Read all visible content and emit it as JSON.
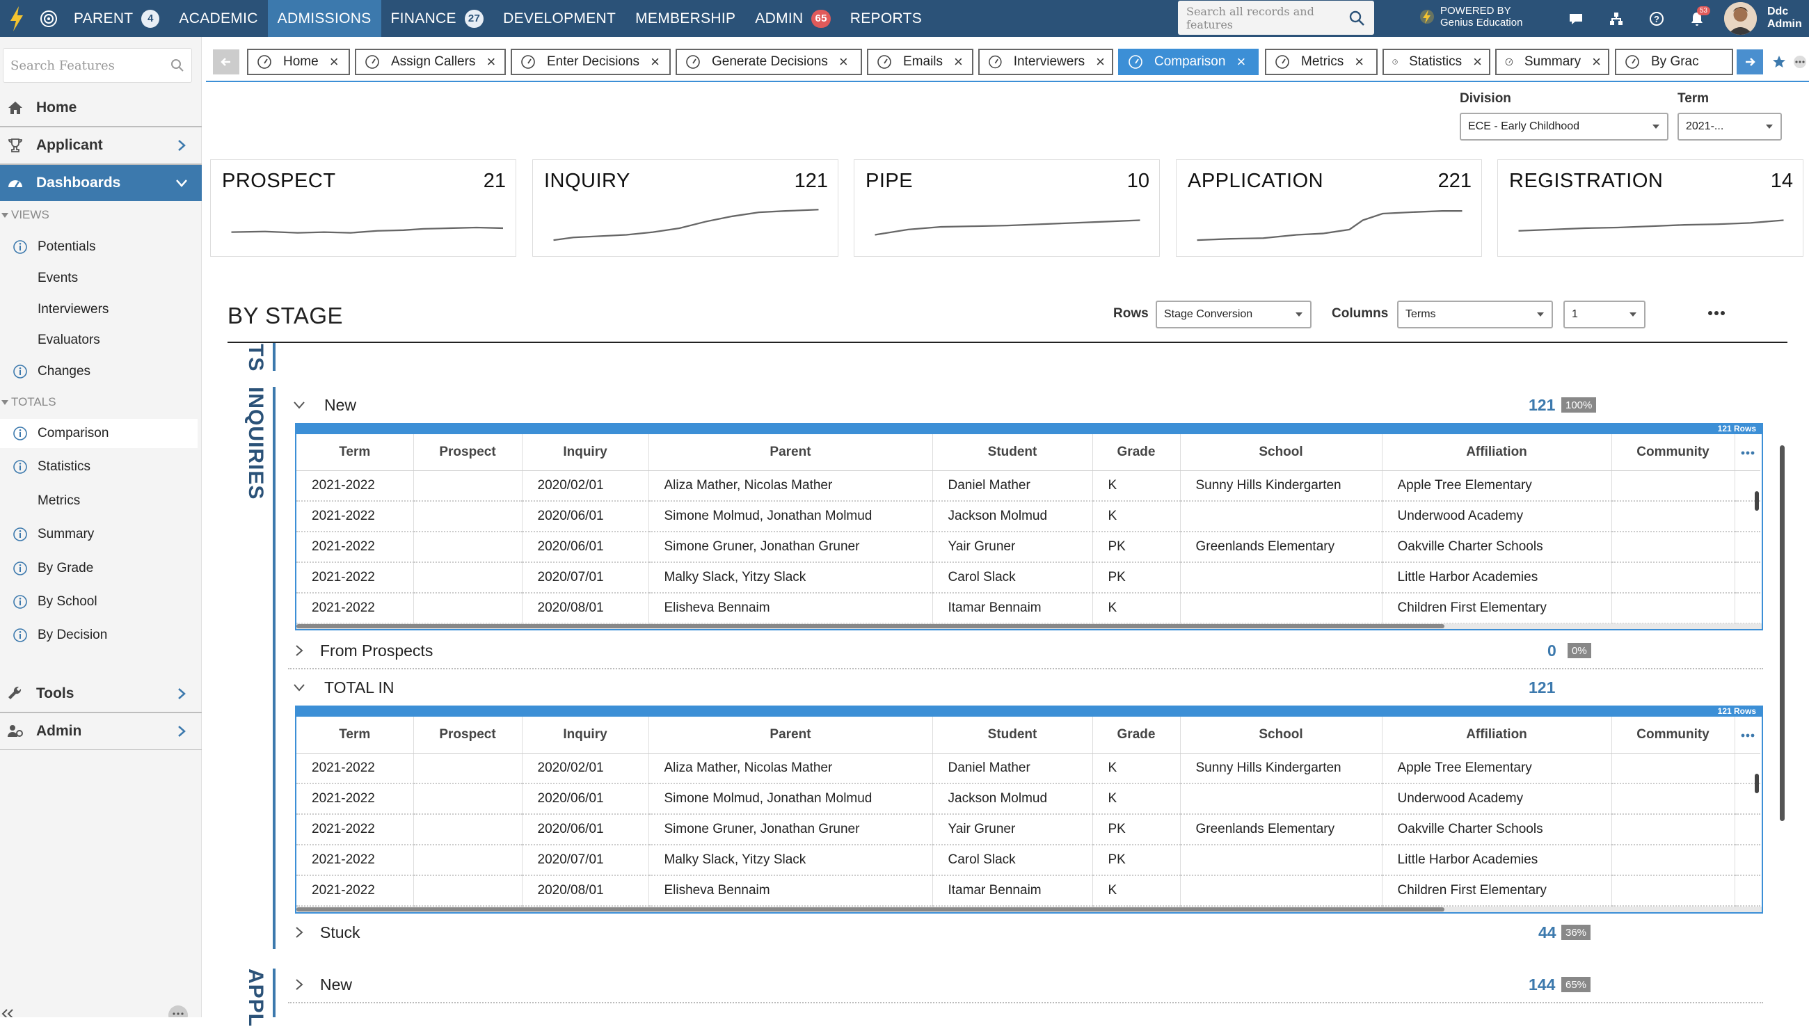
{
  "topnav": {
    "items": [
      {
        "label": "PARENT",
        "badge": "4"
      },
      {
        "label": "ACADEMIC"
      },
      {
        "label": "ADMISSIONS",
        "active": true
      },
      {
        "label": "FINANCE",
        "badge": "27"
      },
      {
        "label": "DEVELOPMENT"
      },
      {
        "label": "MEMBERSHIP"
      },
      {
        "label": "ADMIN",
        "badge": "65",
        "badge_red": true
      },
      {
        "label": "REPORTS"
      }
    ],
    "search_placeholder": "Search all records and features",
    "powered_line1": "POWERED BY",
    "powered_line2": "Genius Education",
    "notif_count": "53",
    "user_first": "Ddc",
    "user_last": "Admin",
    "accent": "#2b5278"
  },
  "sidebar": {
    "search_placeholder": "Search Features",
    "home": "Home",
    "applicant": "Applicant",
    "dashboards": "Dashboards",
    "views_label": "VIEWS",
    "views": [
      {
        "label": "Potentials",
        "icon": true
      },
      {
        "label": "Events",
        "icon": false
      },
      {
        "label": "Interviewers",
        "icon": false
      },
      {
        "label": "Evaluators",
        "icon": false
      },
      {
        "label": "Changes",
        "icon": true
      }
    ],
    "totals_label": "TOTALS",
    "totals": [
      {
        "label": "Comparison",
        "icon": true,
        "selected": true
      },
      {
        "label": "Statistics",
        "icon": true
      },
      {
        "label": "Metrics",
        "icon": false
      },
      {
        "label": "Summary",
        "icon": true
      },
      {
        "label": "By Grade",
        "icon": true
      },
      {
        "label": "By School",
        "icon": true
      },
      {
        "label": "By Decision",
        "icon": true
      }
    ],
    "tools": "Tools",
    "admin": "Admin"
  },
  "tabs": [
    {
      "label": "Home"
    },
    {
      "label": "Assign Callers"
    },
    {
      "label": "Enter Decisions"
    },
    {
      "label": "Generate Decisions"
    },
    {
      "label": "Emails"
    },
    {
      "label": "Interviewers"
    },
    {
      "label": "Comparison",
      "active": true
    },
    {
      "label": "Metrics"
    },
    {
      "label": "Statistics"
    },
    {
      "label": "Summary"
    },
    {
      "label": "By Grac"
    }
  ],
  "filters": {
    "division_label": "Division",
    "division_value": "ECE - Early Childhood",
    "term_label": "Term",
    "term_value": "2021-..."
  },
  "cards": [
    {
      "title": "PROSPECT",
      "value": "21"
    },
    {
      "title": "INQUIRY",
      "value": "121"
    },
    {
      "title": "PIPE",
      "value": "10"
    },
    {
      "title": "APPLICATION",
      "value": "221"
    },
    {
      "title": "REGISTRATION",
      "value": "14"
    }
  ],
  "stage": {
    "title": "BY STAGE",
    "rows_label": "Rows",
    "rows_value": "Stage Conversion",
    "columns_label": "Columns",
    "columns_value": "Terms",
    "columns_value2": "1",
    "section_top_partial": "TS",
    "section_inquiries": "INQUIRIES",
    "section_appl_partial": "APPL",
    "groups": {
      "new": {
        "label": "New",
        "count": "121",
        "pct": "100%"
      },
      "from_prospects": {
        "label": "From Prospects",
        "count": "0",
        "pct": "0%"
      },
      "total_in": {
        "label": "TOTAL IN",
        "count": "121"
      },
      "stuck": {
        "label": "Stuck",
        "count": "44",
        "pct": "36%"
      },
      "appl_new": {
        "label": "New",
        "count": "144",
        "pct": "65%"
      }
    },
    "rows_count_label": "121 Rows",
    "columns": [
      "Term",
      "Prospect",
      "Inquiry",
      "Parent",
      "Student",
      "Grade",
      "School",
      "Affiliation",
      "Community"
    ],
    "records": [
      {
        "term": "2021-2022",
        "prospect": "",
        "inquiry": "2020/02/01",
        "parent": "Aliza Mather, Nicolas Mather",
        "student": "Daniel Mather",
        "grade": "K",
        "school": "Sunny Hills Kindergarten",
        "affiliation": "Apple Tree Elementary",
        "community": ""
      },
      {
        "term": "2021-2022",
        "prospect": "",
        "inquiry": "2020/06/01",
        "parent": "Simone Molmud, Jonathan Molmud",
        "student": "Jackson Molmud",
        "grade": "K",
        "school": "",
        "affiliation": "Underwood Academy",
        "community": ""
      },
      {
        "term": "2021-2022",
        "prospect": "",
        "inquiry": "2020/06/01",
        "parent": "Simone Gruner, Jonathan Gruner",
        "student": "Yair Gruner",
        "grade": "PK",
        "school": "Greenlands Elementary",
        "affiliation": "Oakville Charter Schools",
        "community": ""
      },
      {
        "term": "2021-2022",
        "prospect": "",
        "inquiry": "2020/07/01",
        "parent": "Malky Slack, Yitzy Slack",
        "student": "Carol Slack",
        "grade": "PK",
        "school": "",
        "affiliation": "Little Harbor Academies",
        "community": ""
      },
      {
        "term": "2021-2022",
        "prospect": "",
        "inquiry": "2020/08/01",
        "parent": "Elisheva Bennaim",
        "student": "Itamar Bennaim",
        "grade": "K",
        "school": "",
        "affiliation": "Children First Elementary",
        "community": ""
      }
    ]
  }
}
